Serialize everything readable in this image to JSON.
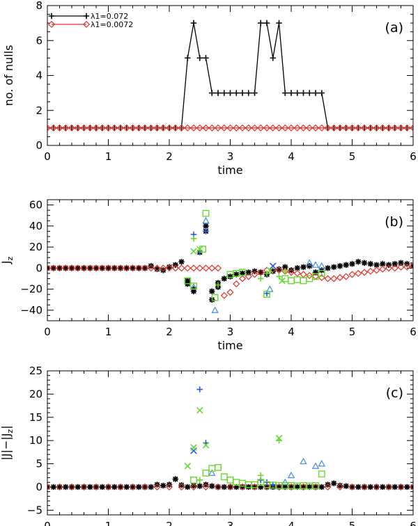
{
  "chart_data": [
    {
      "panel": "(a)",
      "type": "line",
      "xlabel": "time",
      "ylabel": "no. of nulls",
      "xlim": [
        0,
        6
      ],
      "ylim": [
        0,
        8
      ],
      "x_ticks": [
        "0",
        "1",
        "2",
        "3",
        "4",
        "5",
        "6"
      ],
      "y_ticks": [
        "0",
        "2",
        "4",
        "6",
        "8"
      ],
      "legend": [
        {
          "label": "λ1=0.072",
          "color": "#000000",
          "marker": "plus"
        },
        {
          "label": "λ1=0.0072",
          "color": "#e0302a",
          "marker": "diamond"
        }
      ],
      "series": [
        {
          "name": "λ1=0.072",
          "color": "#000000",
          "marker": "plus",
          "x": [
            0,
            0.1,
            0.2,
            0.3,
            0.4,
            0.5,
            0.6,
            0.7,
            0.8,
            0.9,
            1.0,
            1.1,
            1.2,
            1.3,
            1.4,
            1.5,
            1.6,
            1.7,
            1.8,
            1.9,
            2.0,
            2.1,
            2.2,
            2.3,
            2.4,
            2.5,
            2.6,
            2.7,
            2.8,
            2.9,
            3.0,
            3.1,
            3.2,
            3.3,
            3.4,
            3.5,
            3.6,
            3.7,
            3.8,
            3.9,
            4.0,
            4.1,
            4.2,
            4.3,
            4.4,
            4.5,
            4.6,
            4.7,
            4.8,
            4.9,
            5.0,
            5.1,
            5.2,
            5.3,
            5.4,
            5.5,
            5.6,
            5.7,
            5.8,
            5.9,
            6.0
          ],
          "y": [
            1,
            1,
            1,
            1,
            1,
            1,
            1,
            1,
            1,
            1,
            1,
            1,
            1,
            1,
            1,
            1,
            1,
            1,
            1,
            1,
            1,
            1,
            1,
            5,
            7,
            5,
            5,
            3,
            3,
            3,
            3,
            3,
            3,
            3,
            3,
            7,
            7,
            5,
            7,
            3,
            3,
            3,
            3,
            3,
            3,
            3,
            1,
            1,
            1,
            1,
            1,
            1,
            1,
            1,
            1,
            1,
            1,
            1,
            1,
            1,
            1
          ]
        },
        {
          "name": "λ1=0.0072",
          "color": "#e0302a",
          "marker": "diamond",
          "x": [
            0,
            0.1,
            0.2,
            0.3,
            0.4,
            0.5,
            0.6,
            0.7,
            0.8,
            0.9,
            1.0,
            1.1,
            1.2,
            1.3,
            1.4,
            1.5,
            1.6,
            1.7,
            1.8,
            1.9,
            2.0,
            2.1,
            2.2,
            2.3,
            2.4,
            2.5,
            2.6,
            2.7,
            2.8,
            2.9,
            3.0,
            3.1,
            3.2,
            3.3,
            3.4,
            3.5,
            3.6,
            3.7,
            3.8,
            3.9,
            4.0,
            4.1,
            4.2,
            4.3,
            4.4,
            4.5,
            4.6,
            4.7,
            4.8,
            4.9,
            5.0,
            5.1,
            5.2,
            5.3,
            5.4,
            5.5,
            5.6,
            5.7,
            5.8,
            5.9,
            6.0
          ],
          "y": [
            1,
            1,
            1,
            1,
            1,
            1,
            1,
            1,
            1,
            1,
            1,
            1,
            1,
            1,
            1,
            1,
            1,
            1,
            1,
            1,
            1,
            1,
            1,
            1,
            1,
            1,
            1,
            1,
            1,
            1,
            1,
            1,
            1,
            1,
            1,
            1,
            1,
            1,
            1,
            1,
            1,
            1,
            1,
            1,
            1,
            1,
            1,
            1,
            1,
            1,
            1,
            1,
            1,
            1,
            1,
            1,
            1,
            1,
            1,
            1,
            1
          ]
        }
      ]
    },
    {
      "panel": "(b)",
      "type": "scatter",
      "xlabel": "time",
      "ylabel": "J",
      "ylabel_sub": "z",
      "xlim": [
        0,
        6
      ],
      "ylim": [
        -50,
        65
      ],
      "x_ticks": [
        "0",
        "1",
        "2",
        "3",
        "4",
        "5",
        "6"
      ],
      "y_ticks": [
        "-40",
        "-20",
        "0",
        "20",
        "40",
        "60"
      ],
      "series": [
        {
          "name": "λ1=0.072 (black asterisks)",
          "color": "#000000",
          "marker": "asterisk",
          "x": [
            0,
            0.1,
            0.2,
            0.3,
            0.4,
            0.5,
            0.6,
            0.7,
            0.8,
            0.9,
            1.0,
            1.1,
            1.2,
            1.3,
            1.4,
            1.5,
            1.6,
            1.7,
            1.8,
            1.9,
            2.0,
            2.1,
            2.2,
            2.3,
            2.4,
            2.5,
            2.6,
            2.7,
            2.8,
            2.9,
            3.0,
            3.1,
            3.2,
            3.3,
            3.4,
            3.5,
            3.6,
            3.7,
            3.8,
            3.9,
            4.0,
            4.1,
            4.2,
            4.3,
            4.4,
            4.5,
            4.6,
            4.7,
            4.8,
            4.9,
            5.0,
            5.1,
            5.2,
            5.3,
            5.4,
            5.5,
            5.6,
            5.7,
            5.8,
            5.9,
            6.0,
            2.3,
            2.4,
            2.6,
            2.7,
            2.8
          ],
          "y": [
            0,
            0,
            0,
            0,
            0,
            0,
            0,
            0,
            0,
            0,
            0,
            0,
            0,
            0,
            0,
            0,
            0,
            2,
            -1,
            -2,
            1,
            3,
            6,
            -12,
            -22,
            15,
            40,
            -22,
            -18,
            -10,
            -8,
            -6,
            -5,
            -4,
            -3,
            -4,
            -6,
            -3,
            -1,
            1,
            -2,
            0,
            1,
            2,
            -4,
            -2,
            0,
            1,
            2,
            3,
            4,
            6,
            5,
            4,
            3,
            4,
            3,
            4,
            5,
            4,
            2,
            -15,
            -20,
            35,
            -30,
            -14
          ]
        },
        {
          "name": "λ1=0.0072 (red diamonds)",
          "color": "#e0302a",
          "marker": "diamond",
          "x": [
            0,
            0.1,
            0.2,
            0.3,
            0.4,
            0.5,
            0.6,
            0.7,
            0.8,
            0.9,
            1.0,
            1.1,
            1.2,
            1.3,
            1.4,
            1.5,
            1.6,
            1.7,
            1.8,
            1.9,
            2.0,
            2.1,
            2.2,
            2.3,
            2.4,
            2.5,
            2.6,
            2.7,
            2.8,
            2.9,
            3.0,
            3.1,
            3.2,
            3.3,
            3.4,
            3.5,
            3.6,
            3.7,
            3.8,
            3.9,
            4.0,
            4.1,
            4.2,
            4.3,
            4.4,
            4.5,
            4.6,
            4.7,
            4.8,
            4.9,
            5.0,
            5.1,
            5.2,
            5.3,
            5.4,
            5.5,
            5.6,
            5.7,
            5.8,
            5.9,
            6.0
          ],
          "y": [
            0,
            0,
            0,
            0,
            0,
            0,
            0,
            0,
            0,
            0,
            0,
            0,
            0,
            0,
            0,
            0,
            0,
            0,
            0,
            0,
            0,
            0,
            0,
            0,
            0,
            0,
            0,
            0,
            0,
            -26,
            -23,
            -15,
            -10,
            -8,
            -6,
            -4,
            -2,
            -1,
            -2,
            -3,
            -4,
            -5,
            -6,
            -7,
            -8,
            -9,
            -10,
            -10,
            -9,
            -8,
            -6,
            -5,
            -4,
            -3,
            -2,
            -1,
            0,
            0,
            1,
            1,
            2
          ]
        },
        {
          "name": "blue plus",
          "color": "#2a5bd8",
          "marker": "plus",
          "x": [
            2.4,
            2.5,
            2.6,
            3.6
          ],
          "y": [
            32,
            15,
            35,
            -24
          ]
        },
        {
          "name": "blue triangles",
          "color": "#4a8ae0",
          "marker": "triangle",
          "x": [
            2.4,
            2.6,
            2.75,
            3.65,
            4.3,
            4.4,
            4.5
          ],
          "y": [
            -18,
            45,
            -40,
            -20,
            5,
            3,
            2
          ]
        },
        {
          "name": "blue x",
          "color": "#2a5bd8",
          "marker": "cross",
          "x": [
            3.7
          ],
          "y": [
            2
          ]
        },
        {
          "name": "green squares",
          "color": "#66d830",
          "marker": "square",
          "x": [
            2.3,
            2.4,
            2.55,
            2.6,
            2.75,
            3.0,
            3.1,
            3.2,
            3.6,
            3.9,
            4.0,
            4.1,
            4.2,
            4.3,
            4.4,
            4.5
          ],
          "y": [
            -12,
            -17,
            18,
            52,
            -28,
            -6,
            -5,
            -4,
            -25,
            -10,
            -12,
            -11,
            -12,
            -10,
            -8,
            -5
          ]
        },
        {
          "name": "green plus",
          "color": "#66d830",
          "marker": "plus",
          "x": [
            2.4,
            2.8,
            3.5,
            3.6,
            3.8,
            3.9
          ],
          "y": [
            28,
            -16,
            -10,
            -5,
            -8,
            -3
          ]
        },
        {
          "name": "green x",
          "color": "#66d830",
          "marker": "cross",
          "x": [
            2.4,
            2.5,
            3.65,
            3.85
          ],
          "y": [
            16,
            18,
            -2,
            -12
          ]
        }
      ]
    },
    {
      "panel": "(c)",
      "type": "scatter",
      "xlabel": "time",
      "ylabel": "|J|−|J",
      "ylabel_sub": "z",
      "ylabel_end": "|",
      "xlim": [
        0,
        6
      ],
      "ylim": [
        -6,
        25
      ],
      "x_ticks": [
        "0",
        "1",
        "2",
        "3",
        "4",
        "5",
        "6"
      ],
      "y_ticks": [
        "-5",
        "0",
        "5",
        "10",
        "15",
        "20",
        "25"
      ],
      "series": [
        {
          "name": "λ1=0.072 (black asterisks)",
          "color": "#000000",
          "marker": "asterisk",
          "x": [
            0,
            0.1,
            0.2,
            0.3,
            0.4,
            0.5,
            0.6,
            0.7,
            0.8,
            0.9,
            1.0,
            1.1,
            1.2,
            1.3,
            1.4,
            1.5,
            1.6,
            1.7,
            1.8,
            1.9,
            2.0,
            2.1,
            2.2,
            2.3,
            2.4,
            2.5,
            2.6,
            2.7,
            2.8,
            2.9,
            3.0,
            3.1,
            3.2,
            3.3,
            3.4,
            3.5,
            3.6,
            3.7,
            3.8,
            3.9,
            4.0,
            4.1,
            4.2,
            4.3,
            4.4,
            4.5,
            4.6,
            4.7,
            4.8,
            4.9,
            5.0,
            5.1,
            5.2,
            5.3,
            5.4,
            5.5,
            5.6,
            5.7,
            5.8,
            5.9,
            6.0
          ],
          "y": [
            0,
            0,
            0,
            0,
            0,
            0,
            0,
            0,
            0,
            0,
            0,
            0,
            0,
            0,
            0,
            0,
            0,
            0,
            0.5,
            0.3,
            0.5,
            1.7,
            0.4,
            0,
            0.3,
            0.2,
            0.5,
            0.2,
            0,
            0,
            0,
            0,
            0,
            0,
            0,
            0,
            0,
            0,
            0,
            0,
            0,
            0,
            0,
            0,
            0,
            0,
            0.5,
            0.8,
            0.3,
            0.2,
            0,
            0,
            0,
            0,
            0,
            0,
            0,
            0,
            0,
            0,
            0
          ]
        },
        {
          "name": "λ1=0.0072 (red diamonds)",
          "color": "#e0302a",
          "marker": "diamond",
          "x": [
            0,
            0.2,
            0.4,
            0.6,
            0.8,
            1.0,
            1.2,
            1.4,
            1.6,
            1.8,
            2.0,
            2.2,
            2.4,
            2.6,
            2.8,
            3.0,
            3.2,
            3.4,
            3.6,
            3.8,
            4.0,
            4.2,
            4.4,
            4.6,
            4.8,
            5.0,
            5.2,
            5.4,
            5.6,
            5.8,
            6.0
          ],
          "y": [
            0,
            0,
            0,
            0,
            0,
            0,
            0,
            0,
            0,
            0,
            0,
            0,
            0,
            0,
            0,
            0,
            0,
            0,
            0,
            0,
            0,
            0,
            0,
            0,
            0,
            0,
            0,
            0,
            0,
            0,
            0
          ]
        },
        {
          "name": "blue plus",
          "color": "#2a5bd8",
          "marker": "plus",
          "x": [
            2.5,
            2.6,
            3.5,
            3.6,
            3.7
          ],
          "y": [
            21,
            9.5,
            1.5,
            1.0,
            0.5
          ]
        },
        {
          "name": "blue x",
          "color": "#2a5bd8",
          "marker": "cross",
          "x": [
            2.4
          ],
          "y": [
            7.8
          ]
        },
        {
          "name": "blue triangles",
          "color": "#4a8ae0",
          "marker": "triangle",
          "x": [
            2.7,
            3.9,
            4.0,
            4.2,
            4.4,
            4.5
          ],
          "y": [
            3.0,
            1.0,
            2.5,
            5.5,
            4.5,
            5.0
          ]
        },
        {
          "name": "green x",
          "color": "#66d830",
          "marker": "cross",
          "x": [
            2.3,
            2.4,
            2.5,
            2.6,
            3.8
          ],
          "y": [
            4.5,
            8.5,
            16.5,
            9.0,
            10.5
          ]
        },
        {
          "name": "green squares",
          "color": "#66d830",
          "marker": "square",
          "x": [
            2.4,
            2.6,
            2.7,
            2.8,
            2.9,
            3.0,
            3.1,
            3.2,
            3.3,
            3.4,
            3.5,
            3.6,
            3.7,
            3.8,
            3.9,
            4.0,
            4.1,
            4.2,
            4.3,
            4.4,
            4.5
          ],
          "y": [
            1.5,
            3.0,
            4.0,
            4.2,
            2.2,
            1.5,
            1.0,
            0.8,
            0.5,
            0.5,
            1.0,
            0.5,
            0.4,
            0.3,
            0.3,
            0.3,
            0.2,
            0.3,
            0.2,
            0.3,
            2.8
          ]
        },
        {
          "name": "green plus",
          "color": "#66d830",
          "marker": "plus",
          "x": [
            2.5,
            3.5,
            3.8
          ],
          "y": [
            1.5,
            2.5,
            10.0
          ]
        }
      ]
    }
  ]
}
